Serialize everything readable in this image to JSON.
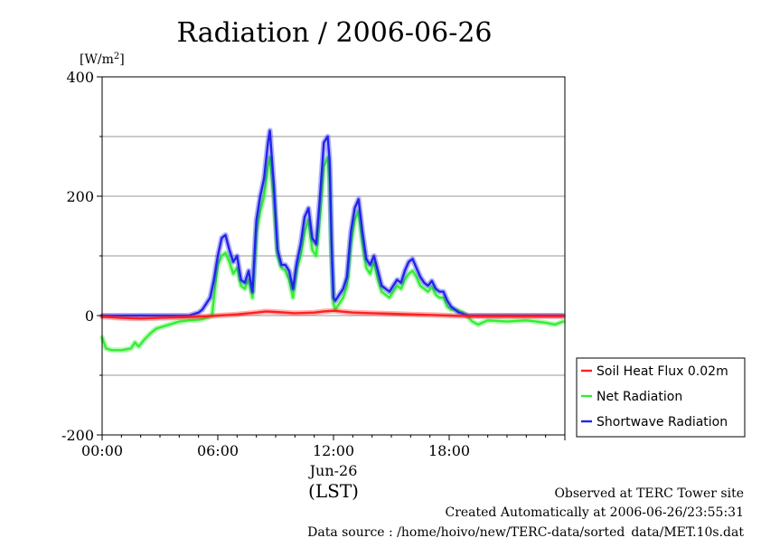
{
  "chart_data": {
    "type": "line",
    "title": "Radiation / 2006-06-26",
    "ylabel": "[W/m",
    "ylabel_sup": "2",
    "ylabel_close": "]",
    "ylim": [
      -200,
      400
    ],
    "yticks": [
      -200,
      0,
      200,
      400
    ],
    "ytick_labels": [
      "-200",
      "0",
      "200",
      "400"
    ],
    "y_gridlines": [
      -100,
      0,
      100,
      200,
      300
    ],
    "xlim": [
      0,
      24
    ],
    "xticks": [
      0,
      6,
      12,
      18
    ],
    "xtick_labels": [
      "00:00",
      "06:00",
      "12:00",
      "18:00"
    ],
    "x_date_label": "Jun-26",
    "xlabel": "(LST)",
    "grid": "horizontal",
    "legend_position": "lower-right-outside",
    "series": [
      {
        "name": "Soil Heat Flux 0.02m",
        "color": "#ff2020",
        "x": [
          0,
          1,
          2,
          3,
          4,
          5,
          6,
          7,
          8,
          8.5,
          9,
          10,
          11,
          11.5,
          12,
          13,
          14,
          15,
          16,
          17,
          18,
          19,
          20,
          21,
          22,
          23,
          23.9
        ],
        "y": [
          -2,
          -4,
          -5,
          -4,
          -3,
          -2,
          0,
          2,
          5,
          7,
          6,
          4,
          5,
          7,
          8,
          5,
          4,
          3,
          2,
          1,
          0,
          -1,
          -1,
          -1,
          -1,
          -1,
          -1
        ]
      },
      {
        "name": "Net Radiation",
        "color": "#33ee33",
        "x": [
          0,
          0.2,
          0.5,
          1,
          1.5,
          1.7,
          1.9,
          2.2,
          2.5,
          2.8,
          3,
          3.5,
          4,
          4.5,
          5,
          5.2,
          5.5,
          5.7,
          5.9,
          6.0,
          6.2,
          6.4,
          6.6,
          6.8,
          7.0,
          7.2,
          7.4,
          7.6,
          7.8,
          8.0,
          8.2,
          8.4,
          8.6,
          8.7,
          8.9,
          9.1,
          9.3,
          9.5,
          9.7,
          9.9,
          10.1,
          10.3,
          10.5,
          10.7,
          10.9,
          11.1,
          11.3,
          11.5,
          11.7,
          11.8,
          11.9,
          12.0,
          12.1,
          12.3,
          12.5,
          12.7,
          12.9,
          13.1,
          13.3,
          13.5,
          13.7,
          13.9,
          14.1,
          14.3,
          14.5,
          14.7,
          14.9,
          15.1,
          15.3,
          15.5,
          15.7,
          15.9,
          16.1,
          16.3,
          16.5,
          16.7,
          16.9,
          17.1,
          17.3,
          17.5,
          17.7,
          17.9,
          18.1,
          18.3,
          18.5,
          18.7,
          18.9,
          19.2,
          19.5,
          20,
          21,
          22,
          22.5,
          23,
          23.5,
          23.9
        ],
        "y": [
          -37,
          -55,
          -58,
          -58,
          -55,
          -45,
          -52,
          -40,
          -30,
          -22,
          -20,
          -15,
          -10,
          -8,
          -7,
          -6,
          -3,
          0,
          60,
          85,
          100,
          105,
          90,
          70,
          80,
          50,
          45,
          60,
          30,
          140,
          175,
          200,
          250,
          265,
          200,
          100,
          80,
          75,
          60,
          30,
          80,
          100,
          140,
          160,
          110,
          100,
          170,
          250,
          265,
          230,
          100,
          20,
          10,
          20,
          30,
          50,
          120,
          160,
          175,
          120,
          80,
          70,
          90,
          60,
          40,
          35,
          30,
          40,
          50,
          45,
          60,
          70,
          75,
          65,
          50,
          45,
          40,
          48,
          35,
          30,
          30,
          15,
          10,
          10,
          8,
          5,
          0,
          -10,
          -15,
          -8,
          -10,
          -8,
          -10,
          -12,
          -15,
          -10
        ]
      },
      {
        "name": "Shortwave Radiation",
        "color": "#2222ee",
        "x": [
          0,
          1,
          2,
          3,
          4,
          4.5,
          5,
          5.2,
          5.4,
          5.6,
          5.8,
          6.0,
          6.2,
          6.4,
          6.6,
          6.8,
          7.0,
          7.2,
          7.4,
          7.6,
          7.8,
          8.0,
          8.2,
          8.4,
          8.6,
          8.7,
          8.9,
          9.1,
          9.3,
          9.5,
          9.7,
          9.9,
          10.1,
          10.3,
          10.5,
          10.7,
          10.9,
          11.1,
          11.3,
          11.5,
          11.7,
          11.8,
          11.9,
          12.0,
          12.1,
          12.3,
          12.5,
          12.7,
          12.9,
          13.1,
          13.3,
          13.5,
          13.7,
          13.9,
          14.1,
          14.3,
          14.5,
          14.7,
          14.9,
          15.1,
          15.3,
          15.5,
          15.7,
          15.9,
          16.1,
          16.3,
          16.5,
          16.7,
          16.9,
          17.1,
          17.3,
          17.5,
          17.7,
          17.9,
          18.1,
          18.3,
          18.5,
          18.7,
          19,
          20,
          21,
          22,
          23,
          23.9
        ],
        "y": [
          0,
          0,
          0,
          0,
          0,
          0,
          5,
          10,
          20,
          30,
          60,
          100,
          130,
          135,
          110,
          90,
          100,
          60,
          55,
          75,
          40,
          160,
          200,
          230,
          290,
          310,
          220,
          110,
          85,
          85,
          75,
          45,
          90,
          120,
          165,
          180,
          130,
          120,
          200,
          290,
          300,
          260,
          120,
          30,
          25,
          35,
          45,
          65,
          140,
          180,
          195,
          140,
          95,
          85,
          100,
          75,
          50,
          45,
          40,
          50,
          60,
          55,
          75,
          90,
          95,
          80,
          65,
          55,
          50,
          58,
          45,
          40,
          40,
          25,
          15,
          10,
          5,
          3,
          0,
          0,
          0,
          0,
          0,
          0
        ]
      }
    ]
  },
  "footer": {
    "line1": "Observed at TERC Tower site",
    "line2": "Created Automatically at 2006-06-26/23:55:31",
    "line3": "Data source : /home/hoivo/new/TERC-data/sorted_data/MET.10s.dat"
  }
}
